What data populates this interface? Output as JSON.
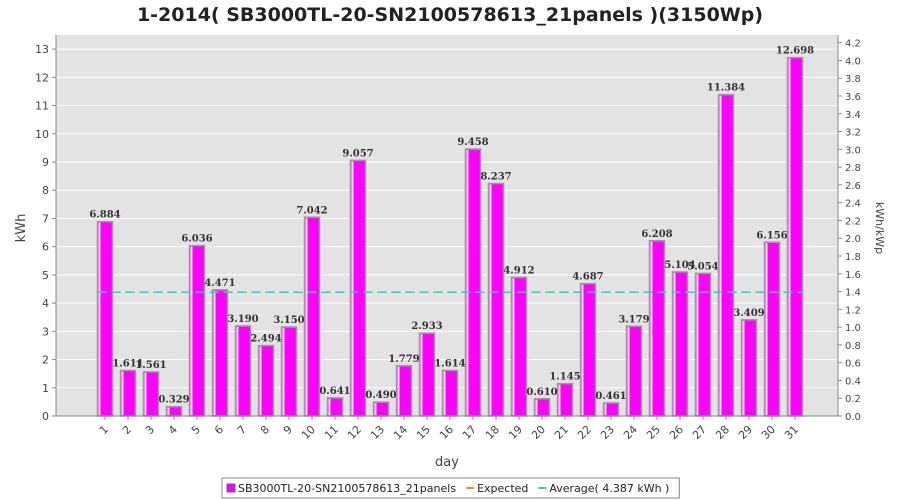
{
  "chart_data": {
    "type": "bar",
    "title": "1-2014( SB3000TL-20-SN2100578613_21panels )(3150Wp)",
    "xlabel": "day",
    "ylabel": "kWh",
    "y2label": "kWh/kWp",
    "ylim": [
      0,
      13.5
    ],
    "y2lim": [
      0,
      4.286
    ],
    "yticks": [
      0,
      1,
      2,
      3,
      4,
      5,
      6,
      7,
      8,
      9,
      10,
      11,
      12,
      13
    ],
    "y2ticks": [
      "0.0",
      "0.2",
      "0.4",
      "0.6",
      "0.8",
      "1.0",
      "1.2",
      "1.4",
      "1.6",
      "1.8",
      "2.0",
      "2.2",
      "2.4",
      "2.6",
      "2.8",
      "3.0",
      "3.2",
      "3.4",
      "3.6",
      "3.8",
      "4.0",
      "4.2"
    ],
    "categories": [
      "1",
      "2",
      "3",
      "4",
      "5",
      "6",
      "7",
      "8",
      "9",
      "10",
      "11",
      "12",
      "13",
      "14",
      "15",
      "16",
      "17",
      "18",
      "19",
      "20",
      "21",
      "22",
      "23",
      "24",
      "25",
      "26",
      "27",
      "28",
      "29",
      "30",
      "31"
    ],
    "series": [
      {
        "name": "SB3000TL-20-SN2100578613_21panels",
        "color": "#ff00ff",
        "values": [
          6.884,
          1.611,
          1.561,
          0.329,
          6.036,
          4.471,
          3.19,
          2.494,
          3.15,
          7.042,
          0.641,
          9.057,
          0.49,
          1.779,
          2.933,
          1.614,
          9.458,
          8.237,
          4.912,
          0.61,
          1.145,
          4.687,
          0.461,
          3.179,
          6.208,
          5.104,
          5.054,
          11.384,
          3.409,
          6.156,
          12.698
        ],
        "labels": [
          "6.884",
          "1.611",
          "1.561",
          "0.329",
          "6.036",
          "4.471",
          "3.190",
          "2.494",
          "3.150",
          "7.042",
          "0.641",
          "9.057",
          "0.490",
          "1.779",
          "2.933",
          "1.614",
          "9.458",
          "8.237",
          "4.912",
          "0.610",
          "1.145",
          "4.687",
          "0.461",
          "3.179",
          "6.208",
          "5.104",
          "5.054",
          "11.384",
          "3.409",
          "6.156",
          "12.698"
        ]
      }
    ],
    "average": 4.387,
    "legend": [
      {
        "label": "SB3000TL-20-SN2100578613_21panels",
        "color": "#ff00ff",
        "kind": "box"
      },
      {
        "label": "Expected",
        "color": "#ff8c1a",
        "kind": "line"
      },
      {
        "label": "Average( 4.387 kWh )",
        "color": "#33cccc",
        "kind": "line"
      }
    ],
    "legend_position": "bottom",
    "grid": true,
    "colors": {
      "plot_bg": "#e3e3e3",
      "grid": "#ffffff",
      "bar": "#ff00ff",
      "average": "#33cccc",
      "expected": "#ff8c1a"
    }
  }
}
